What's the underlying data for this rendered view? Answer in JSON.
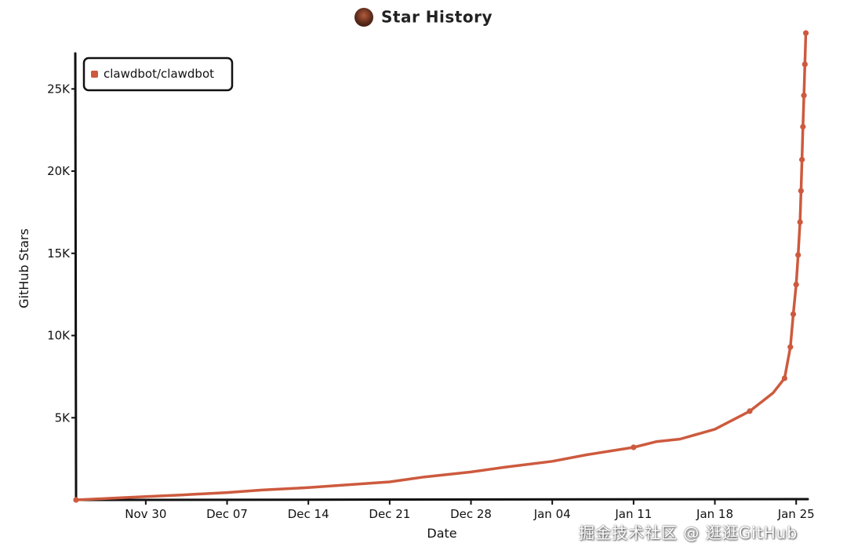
{
  "title": "Star History",
  "watermark": "掘金技术社区 @ 逛逛GitHub",
  "colors": {
    "series": "#cd5a3e",
    "axis": "#111111",
    "background": "#ffffff"
  },
  "chart_data": {
    "type": "line",
    "title": "Star History",
    "xlabel": "Date",
    "ylabel": "GitHub Stars",
    "x_ticks": [
      "Nov 30",
      "Dec 07",
      "Dec 14",
      "Dec 21",
      "Dec 28",
      "Jan 04",
      "Jan 11",
      "Jan 18",
      "Jan 25"
    ],
    "y_ticks": [
      "5K",
      "10K",
      "15K",
      "20K",
      "25K"
    ],
    "ylim": [
      0,
      28500
    ],
    "xlim": [
      "2025-11-24",
      "2026-01-26"
    ],
    "legend": {
      "position": "top-left",
      "entries": [
        "clawdbot/clawdbot"
      ]
    },
    "grid": false,
    "series": [
      {
        "name": "clawdbot/clawdbot",
        "points": [
          [
            "2025-11-24",
            0
          ],
          [
            "2025-11-27",
            100
          ],
          [
            "2025-11-30",
            200
          ],
          [
            "2025-12-03",
            300
          ],
          [
            "2025-12-07",
            450
          ],
          [
            "2025-12-10",
            600
          ],
          [
            "2025-12-14",
            750
          ],
          [
            "2025-12-17",
            900
          ],
          [
            "2025-12-21",
            1100
          ],
          [
            "2025-12-24",
            1400
          ],
          [
            "2025-12-28",
            1700
          ],
          [
            "2025-12-31",
            2000
          ],
          [
            "2026-01-04",
            2350
          ],
          [
            "2026-01-07",
            2750
          ],
          [
            "2026-01-11",
            3200
          ],
          [
            "2026-01-13",
            3550
          ],
          [
            "2026-01-15",
            3700
          ],
          [
            "2026-01-18",
            4300
          ],
          [
            "2026-01-21",
            5400
          ],
          [
            "2026-01-23",
            6500
          ],
          [
            "2026-01-24",
            7400
          ],
          [
            "2026-01-24T12",
            9300
          ],
          [
            "2026-01-24T18",
            11300
          ],
          [
            "2026-01-25",
            13100
          ],
          [
            "2026-01-25T04",
            14900
          ],
          [
            "2026-01-25T08",
            16900
          ],
          [
            "2026-01-25T10",
            18800
          ],
          [
            "2026-01-25T12",
            20700
          ],
          [
            "2026-01-25T14",
            22700
          ],
          [
            "2026-01-25T16",
            24600
          ],
          [
            "2026-01-25T18",
            26500
          ],
          [
            "2026-01-25T20",
            28400
          ]
        ]
      }
    ]
  }
}
